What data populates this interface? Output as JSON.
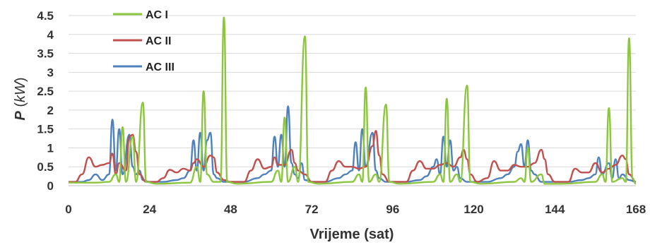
{
  "chart_data": {
    "type": "line",
    "title": "",
    "xlabel": "Vrijeme (sat)",
    "ylabel": {
      "symbol": "P",
      "unit_open": " (",
      "unit": "kW",
      "unit_close": ")"
    },
    "xlim": [
      0,
      168
    ],
    "ylim": [
      0,
      4.5
    ],
    "x_ticks": [
      0,
      24,
      48,
      72,
      96,
      120,
      144,
      168
    ],
    "y_ticks": [
      0,
      0.5,
      1,
      1.5,
      2,
      2.5,
      3,
      3.5,
      4,
      4.5
    ],
    "y_tick_labels": [
      "0",
      "0.5",
      "1",
      "1.5",
      "2",
      "2.5",
      "3",
      "3.5",
      "4",
      "4.5"
    ],
    "grid": "horizontal",
    "legend_position": "top-left",
    "series": [
      {
        "name": "AC I",
        "color": "#8cc63f",
        "points": [
          [
            0,
            0.08
          ],
          [
            8,
            0.08
          ],
          [
            12,
            0.1
          ],
          [
            14,
            0.3
          ],
          [
            15,
            0.1
          ],
          [
            16,
            1.55
          ],
          [
            17,
            0.1
          ],
          [
            19,
            1.3
          ],
          [
            20,
            0.1
          ],
          [
            22,
            2.2
          ],
          [
            23,
            0.1
          ],
          [
            26,
            0.05
          ],
          [
            36,
            0.08
          ],
          [
            38,
            0.5
          ],
          [
            39,
            0.1
          ],
          [
            40,
            2.5
          ],
          [
            41,
            0.3
          ],
          [
            43,
            0.1
          ],
          [
            45,
            0.1
          ],
          [
            46,
            4.45
          ],
          [
            47,
            0.1
          ],
          [
            50,
            0.05
          ],
          [
            60,
            0.1
          ],
          [
            62,
            0.4
          ],
          [
            63,
            0.1
          ],
          [
            64,
            1.8
          ],
          [
            65,
            0.1
          ],
          [
            67,
            0.5
          ],
          [
            68,
            0.1
          ],
          [
            70,
            3.95
          ],
          [
            71,
            0.1
          ],
          [
            74,
            0.05
          ],
          [
            84,
            0.1
          ],
          [
            86,
            0.3
          ],
          [
            87,
            0.1
          ],
          [
            88,
            2.6
          ],
          [
            89,
            0.1
          ],
          [
            91,
            0.3
          ],
          [
            92,
            0.1
          ],
          [
            94,
            2.15
          ],
          [
            95,
            0.1
          ],
          [
            98,
            0.05
          ],
          [
            108,
            0.1
          ],
          [
            110,
            0.3
          ],
          [
            111,
            0.1
          ],
          [
            112,
            2.3
          ],
          [
            113,
            0.1
          ],
          [
            115,
            0.3
          ],
          [
            116,
            0.1
          ],
          [
            118,
            2.65
          ],
          [
            119,
            0.1
          ],
          [
            122,
            0.05
          ],
          [
            132,
            0.1
          ],
          [
            134,
            0.2
          ],
          [
            135,
            0.1
          ],
          [
            136,
            1.0
          ],
          [
            137,
            0.1
          ],
          [
            140,
            0.3
          ],
          [
            141,
            0.05
          ],
          [
            146,
            0.05
          ],
          [
            156,
            0.1
          ],
          [
            158,
            0.3
          ],
          [
            159,
            0.1
          ],
          [
            160,
            2.05
          ],
          [
            161,
            0.1
          ],
          [
            164,
            0.2
          ],
          [
            165,
            0.1
          ],
          [
            166,
            3.9
          ],
          [
            167,
            0.2
          ],
          [
            168,
            0.05
          ]
        ]
      },
      {
        "name": "AC II",
        "color": "#c0504d",
        "points": [
          [
            0,
            0.1
          ],
          [
            2,
            0.1
          ],
          [
            4,
            0.3
          ],
          [
            6,
            0.75
          ],
          [
            8,
            0.5
          ],
          [
            10,
            0.55
          ],
          [
            12,
            0.6
          ],
          [
            13,
            0.85
          ],
          [
            14,
            0.3
          ],
          [
            15,
            0.6
          ],
          [
            17,
            0.4
          ],
          [
            18,
            1.3
          ],
          [
            19,
            1.35
          ],
          [
            20,
            0.9
          ],
          [
            21,
            0.3
          ],
          [
            23,
            0.1
          ],
          [
            26,
            0.1
          ],
          [
            28,
            0.2
          ],
          [
            30,
            0.42
          ],
          [
            32,
            0.35
          ],
          [
            34,
            0.45
          ],
          [
            36,
            0.4
          ],
          [
            37,
            0.6
          ],
          [
            38,
            0.7
          ],
          [
            40,
            0.5
          ],
          [
            42,
            0.8
          ],
          [
            43,
            0.75
          ],
          [
            44,
            0.35
          ],
          [
            46,
            0.15
          ],
          [
            48,
            0.1
          ],
          [
            52,
            0.1
          ],
          [
            54,
            0.4
          ],
          [
            56,
            0.7
          ],
          [
            58,
            0.45
          ],
          [
            60,
            0.5
          ],
          [
            61,
            0.75
          ],
          [
            62,
            0.55
          ],
          [
            64,
            0.55
          ],
          [
            66,
            0.95
          ],
          [
            67,
            0.6
          ],
          [
            68,
            0.4
          ],
          [
            70,
            0.3
          ],
          [
            72,
            0.1
          ],
          [
            76,
            0.1
          ],
          [
            78,
            0.4
          ],
          [
            80,
            0.65
          ],
          [
            82,
            0.5
          ],
          [
            84,
            0.5
          ],
          [
            86,
            0.45
          ],
          [
            88,
            0.5
          ],
          [
            90,
            1.05
          ],
          [
            91,
            1.45
          ],
          [
            92,
            0.8
          ],
          [
            93,
            0.3
          ],
          [
            95,
            0.1
          ],
          [
            100,
            0.1
          ],
          [
            102,
            0.4
          ],
          [
            104,
            0.65
          ],
          [
            106,
            0.45
          ],
          [
            108,
            0.45
          ],
          [
            110,
            0.55
          ],
          [
            112,
            0.6
          ],
          [
            114,
            0.5
          ],
          [
            116,
            0.75
          ],
          [
            117,
            0.95
          ],
          [
            118,
            0.7
          ],
          [
            119,
            0.3
          ],
          [
            121,
            0.1
          ],
          [
            124,
            0.2
          ],
          [
            126,
            0.65
          ],
          [
            128,
            0.4
          ],
          [
            130,
            0.4
          ],
          [
            132,
            0.55
          ],
          [
            134,
            0.5
          ],
          [
            136,
            0.5
          ],
          [
            138,
            0.6
          ],
          [
            140,
            0.95
          ],
          [
            141,
            0.7
          ],
          [
            142,
            0.3
          ],
          [
            144,
            0.1
          ],
          [
            148,
            0.1
          ],
          [
            150,
            0.45
          ],
          [
            152,
            0.35
          ],
          [
            154,
            0.35
          ],
          [
            156,
            0.6
          ],
          [
            158,
            0.35
          ],
          [
            160,
            0.45
          ],
          [
            162,
            0.55
          ],
          [
            164,
            0.8
          ],
          [
            165,
            0.7
          ],
          [
            166,
            0.3
          ],
          [
            168,
            0.1
          ]
        ]
      },
      {
        "name": "AC III",
        "color": "#4f81bd",
        "points": [
          [
            0,
            0.1
          ],
          [
            4,
            0.1
          ],
          [
            6,
            0.15
          ],
          [
            8,
            0.3
          ],
          [
            10,
            0.15
          ],
          [
            12,
            0.3
          ],
          [
            13,
            1.75
          ],
          [
            14,
            0.4
          ],
          [
            15,
            1.5
          ],
          [
            16,
            0.3
          ],
          [
            18,
            1.35
          ],
          [
            19,
            0.5
          ],
          [
            20,
            0.3
          ],
          [
            21,
            0.4
          ],
          [
            22,
            0.15
          ],
          [
            24,
            0.1
          ],
          [
            28,
            0.1
          ],
          [
            32,
            0.15
          ],
          [
            34,
            0.2
          ],
          [
            36,
            0.4
          ],
          [
            37,
            1.2
          ],
          [
            38,
            0.4
          ],
          [
            39,
            1.4
          ],
          [
            40,
            0.4
          ],
          [
            41,
            1.2
          ],
          [
            42,
            1.4
          ],
          [
            43,
            0.3
          ],
          [
            44,
            0.2
          ],
          [
            46,
            0.1
          ],
          [
            52,
            0.1
          ],
          [
            56,
            0.2
          ],
          [
            58,
            0.3
          ],
          [
            60,
            0.4
          ],
          [
            61,
            1.3
          ],
          [
            62,
            0.5
          ],
          [
            63,
            1.35
          ],
          [
            64,
            0.5
          ],
          [
            65,
            2.1
          ],
          [
            66,
            0.6
          ],
          [
            67,
            0.3
          ],
          [
            68,
            0.2
          ],
          [
            69,
            0.6
          ],
          [
            70,
            0.15
          ],
          [
            72,
            0.1
          ],
          [
            76,
            0.1
          ],
          [
            80,
            0.2
          ],
          [
            82,
            0.3
          ],
          [
            84,
            0.4
          ],
          [
            85,
            1.15
          ],
          [
            86,
            0.4
          ],
          [
            87,
            1.5
          ],
          [
            88,
            0.5
          ],
          [
            90,
            1.4
          ],
          [
            91,
            0.4
          ],
          [
            92,
            0.2
          ],
          [
            94,
            0.1
          ],
          [
            100,
            0.1
          ],
          [
            104,
            0.15
          ],
          [
            106,
            0.25
          ],
          [
            108,
            0.5
          ],
          [
            109,
            0.7
          ],
          [
            110,
            0.3
          ],
          [
            111,
            1.3
          ],
          [
            112,
            0.5
          ],
          [
            113,
            1.2
          ],
          [
            114,
            0.4
          ],
          [
            115,
            0.5
          ],
          [
            116,
            0.2
          ],
          [
            118,
            0.1
          ],
          [
            124,
            0.1
          ],
          [
            128,
            0.2
          ],
          [
            130,
            0.3
          ],
          [
            132,
            0.5
          ],
          [
            133,
            0.9
          ],
          [
            134,
            1.1
          ],
          [
            135,
            0.5
          ],
          [
            136,
            1.2
          ],
          [
            137,
            0.4
          ],
          [
            138,
            0.3
          ],
          [
            140,
            0.1
          ],
          [
            148,
            0.1
          ],
          [
            152,
            0.15
          ],
          [
            154,
            0.2
          ],
          [
            156,
            0.3
          ],
          [
            157,
            0.75
          ],
          [
            158,
            0.3
          ],
          [
            160,
            0.6
          ],
          [
            161,
            0.2
          ],
          [
            162,
            0.7
          ],
          [
            163,
            0.2
          ],
          [
            164,
            0.3
          ],
          [
            166,
            0.15
          ],
          [
            168,
            0.1
          ]
        ]
      }
    ]
  }
}
